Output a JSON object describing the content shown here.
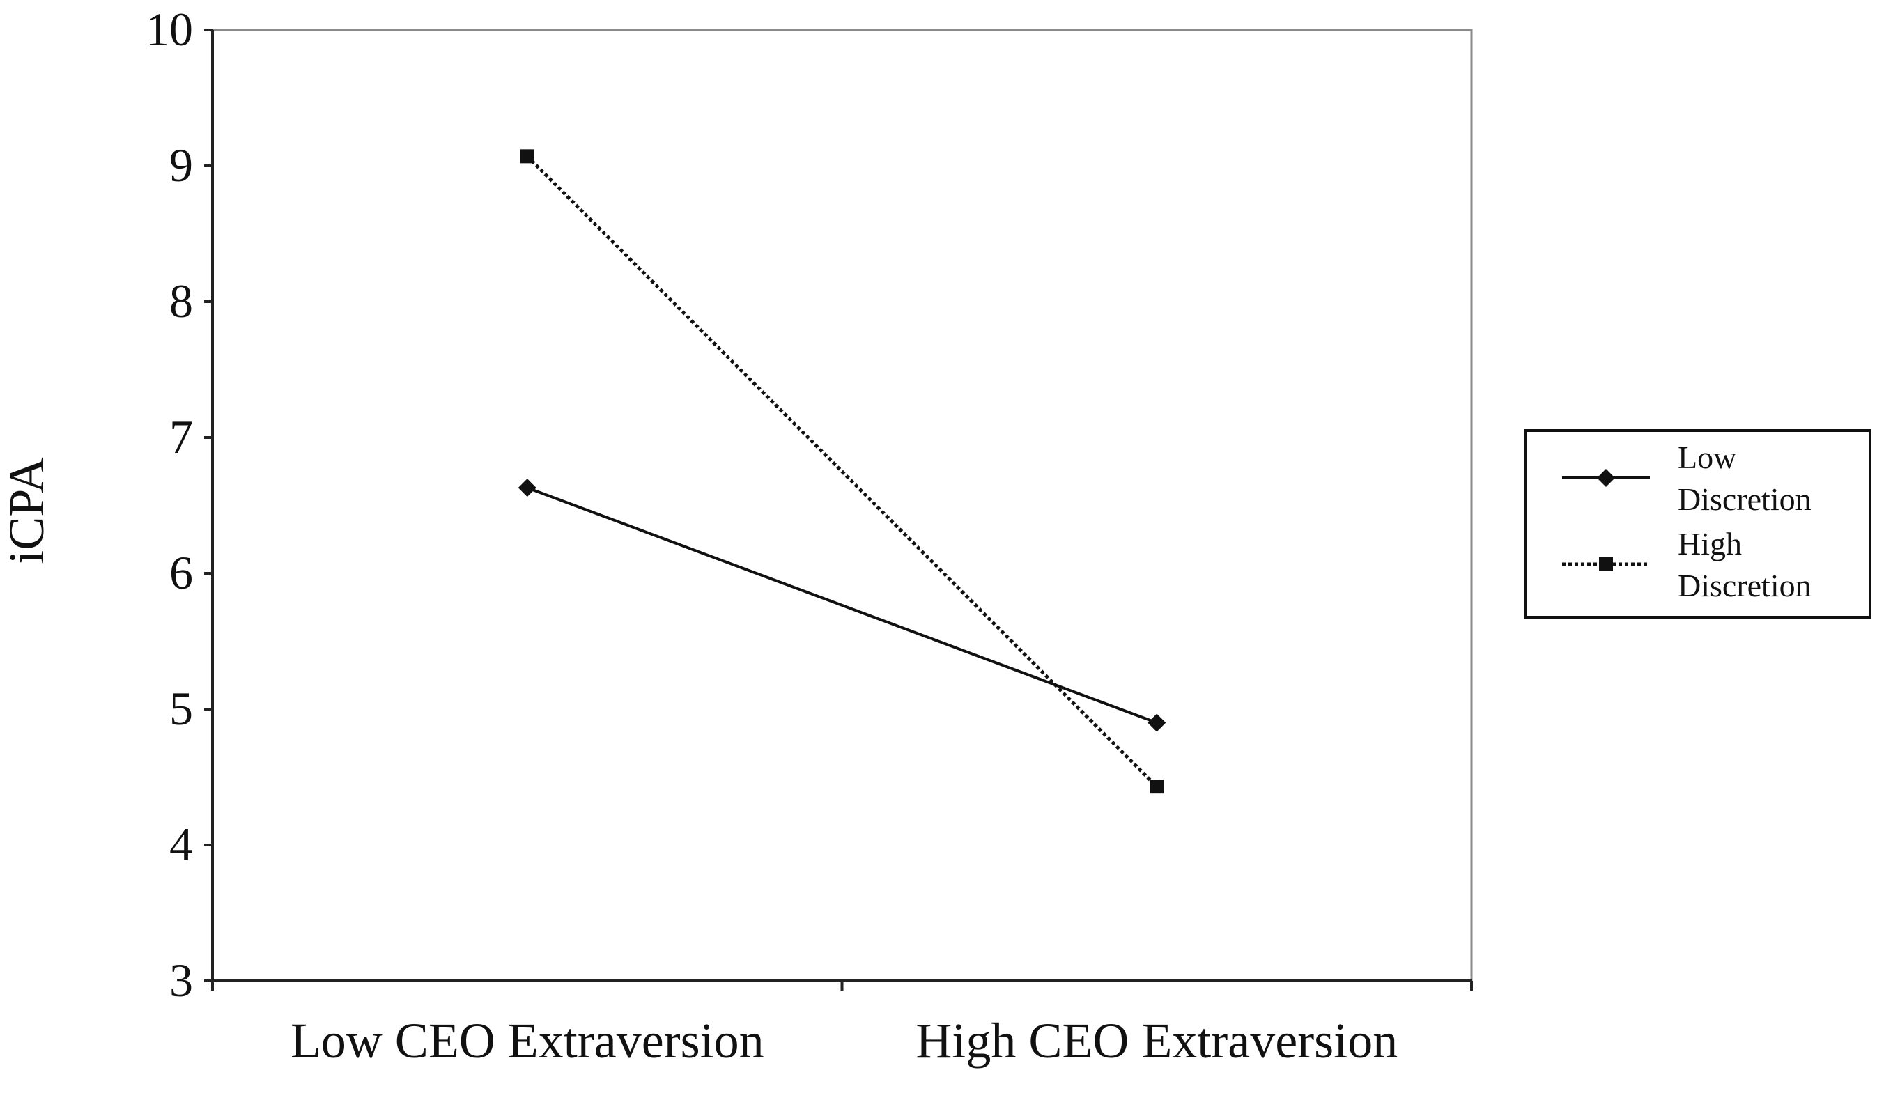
{
  "chart_data": {
    "type": "line",
    "title": "",
    "xlabel": "",
    "ylabel": "iCPA",
    "categories": [
      "Low CEO Extraversion",
      "High CEO Extraversion"
    ],
    "ylim": [
      3,
      10
    ],
    "yticks": [
      3,
      4,
      5,
      6,
      7,
      8,
      9,
      10
    ],
    "grid": false,
    "legend_position": "right",
    "series": [
      {
        "name": "Low Discretion",
        "name_lines": [
          "Low",
          "Discretion"
        ],
        "values": [
          6.63,
          4.9
        ],
        "line_style": "solid",
        "marker": "diamond",
        "color": "#111111"
      },
      {
        "name": "High Discretion",
        "name_lines": [
          "High",
          "Discretion"
        ],
        "values": [
          9.07,
          4.43
        ],
        "line_style": "dotted",
        "marker": "square",
        "color": "#111111"
      }
    ]
  }
}
